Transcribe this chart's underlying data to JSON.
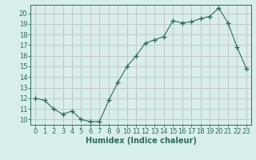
{
  "x": [
    0,
    1,
    2,
    3,
    4,
    5,
    6,
    7,
    8,
    9,
    10,
    11,
    12,
    13,
    14,
    15,
    16,
    17,
    18,
    19,
    20,
    21,
    22,
    23
  ],
  "y": [
    12.0,
    11.8,
    11.0,
    10.5,
    10.8,
    10.0,
    9.8,
    9.8,
    11.8,
    13.5,
    15.0,
    16.0,
    17.2,
    17.5,
    17.8,
    19.3,
    19.1,
    19.2,
    19.5,
    19.7,
    20.5,
    19.1,
    16.8,
    14.8
  ],
  "line_color": "#2d6b5e",
  "marker": "+",
  "marker_size": 4,
  "background_color": "#d8eeea",
  "grid_color": "#c4bfc8",
  "tick_color": "#2d6b5e",
  "xlabel": "Humidex (Indice chaleur)",
  "xlim": [
    -0.5,
    23.5
  ],
  "ylim": [
    9.5,
    20.8
  ],
  "yticks": [
    10,
    11,
    12,
    13,
    14,
    15,
    16,
    17,
    18,
    19,
    20
  ],
  "xticks": [
    0,
    1,
    2,
    3,
    4,
    5,
    6,
    7,
    8,
    9,
    10,
    11,
    12,
    13,
    14,
    15,
    16,
    17,
    18,
    19,
    20,
    21,
    22,
    23
  ],
  "font_size": 6,
  "label_font_size": 7
}
